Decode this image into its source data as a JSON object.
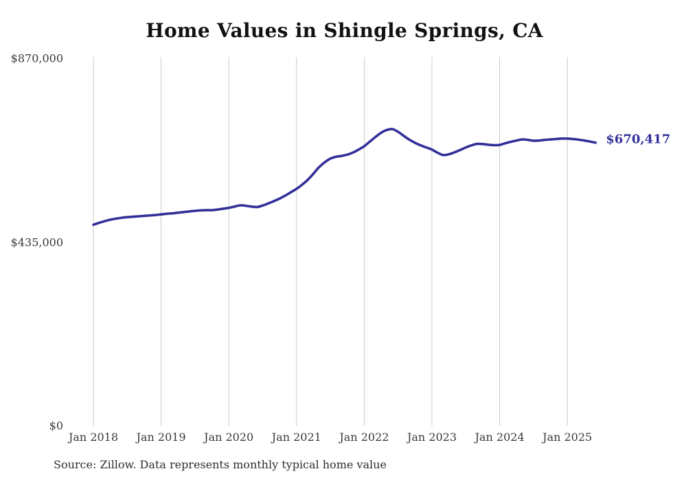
{
  "title": "Home Values in Shingle Springs, CA",
  "source_note": "Source: Zillow. Data represents monthly typical home value",
  "end_label": "$670,417",
  "colors": {
    "line": "#322f99",
    "grid": "#c9c9c9",
    "title": "#111111",
    "tick_text": "#383838",
    "end_label": "#322f99",
    "background": "#ffffff"
  },
  "chart_data": {
    "type": "line",
    "title": "Home Values in Shingle Springs, CA",
    "xlabel": "",
    "ylabel": "",
    "ylim": [
      0,
      870000
    ],
    "grid": "vertical-only",
    "legend_position": "none",
    "end_annotation": "$670,417",
    "yticks": [
      {
        "value": 870000,
        "label": "$870,000"
      },
      {
        "value": 435000,
        "label": "$435,000"
      },
      {
        "value": 0,
        "label": "$0"
      }
    ],
    "xtick_labels": [
      "Jan 2018",
      "Jan 2019",
      "Jan 2020",
      "Jan 2021",
      "Jan 2022",
      "Jan 2023",
      "Jan 2024",
      "Jan 2025"
    ],
    "x": [
      "Jan 2018",
      "Feb 2018",
      "Mar 2018",
      "Apr 2018",
      "May 2018",
      "Jun 2018",
      "Jul 2018",
      "Aug 2018",
      "Sep 2018",
      "Oct 2018",
      "Nov 2018",
      "Dec 2018",
      "Jan 2019",
      "Feb 2019",
      "Mar 2019",
      "Apr 2019",
      "May 2019",
      "Jun 2019",
      "Jul 2019",
      "Aug 2019",
      "Sep 2019",
      "Oct 2019",
      "Nov 2019",
      "Dec 2019",
      "Jan 2020",
      "Feb 2020",
      "Mar 2020",
      "Apr 2020",
      "May 2020",
      "Jun 2020",
      "Jul 2020",
      "Aug 2020",
      "Sep 2020",
      "Oct 2020",
      "Nov 2020",
      "Dec 2020",
      "Jan 2021",
      "Feb 2021",
      "Mar 2021",
      "Apr 2021",
      "May 2021",
      "Jun 2021",
      "Jul 2021",
      "Aug 2021",
      "Sep 2021",
      "Oct 2021",
      "Nov 2021",
      "Dec 2021",
      "Jan 2022",
      "Feb 2022",
      "Mar 2022",
      "Apr 2022",
      "May 2022",
      "Jun 2022",
      "Jul 2022",
      "Aug 2022",
      "Sep 2022",
      "Oct 2022",
      "Nov 2022",
      "Dec 2022",
      "Jan 2023",
      "Feb 2023",
      "Mar 2023",
      "Apr 2023",
      "May 2023",
      "Jun 2023",
      "Jul 2023",
      "Aug 2023",
      "Sep 2023",
      "Oct 2023",
      "Nov 2023",
      "Dec 2023",
      "Jan 2024",
      "Feb 2024",
      "Mar 2024",
      "Apr 2024",
      "May 2024",
      "Jun 2024",
      "Jul 2024",
      "Aug 2024",
      "Sep 2024",
      "Oct 2024",
      "Nov 2024",
      "Dec 2024",
      "Jan 2025",
      "Feb 2025",
      "Mar 2025",
      "Apr 2025",
      "May 2025",
      "Jun 2025"
    ],
    "values": [
      476000,
      480500,
      484500,
      488000,
      490500,
      492500,
      494000,
      495000,
      496000,
      497000,
      498000,
      499000,
      500500,
      502000,
      503000,
      504500,
      506000,
      507500,
      509000,
      510000,
      510500,
      510500,
      512000,
      514000,
      516000,
      519000,
      522000,
      521000,
      519000,
      518000,
      521500,
      526500,
      532000,
      538000,
      545000,
      553000,
      561000,
      571000,
      582500,
      597000,
      612500,
      624000,
      632500,
      637000,
      639000,
      642000,
      647000,
      654000,
      662000,
      673000,
      684000,
      694000,
      700500,
      702500,
      696000,
      686500,
      677500,
      670000,
      664000,
      659000,
      654000,
      646500,
      641000,
      643000,
      647500,
      653000,
      659000,
      664000,
      667500,
      667000,
      665500,
      664500,
      665000,
      669000,
      672500,
      675500,
      678000,
      677000,
      675000,
      675500,
      677000,
      678000,
      679000,
      680000,
      680000,
      679000,
      677500,
      675500,
      673000,
      670417
    ]
  }
}
